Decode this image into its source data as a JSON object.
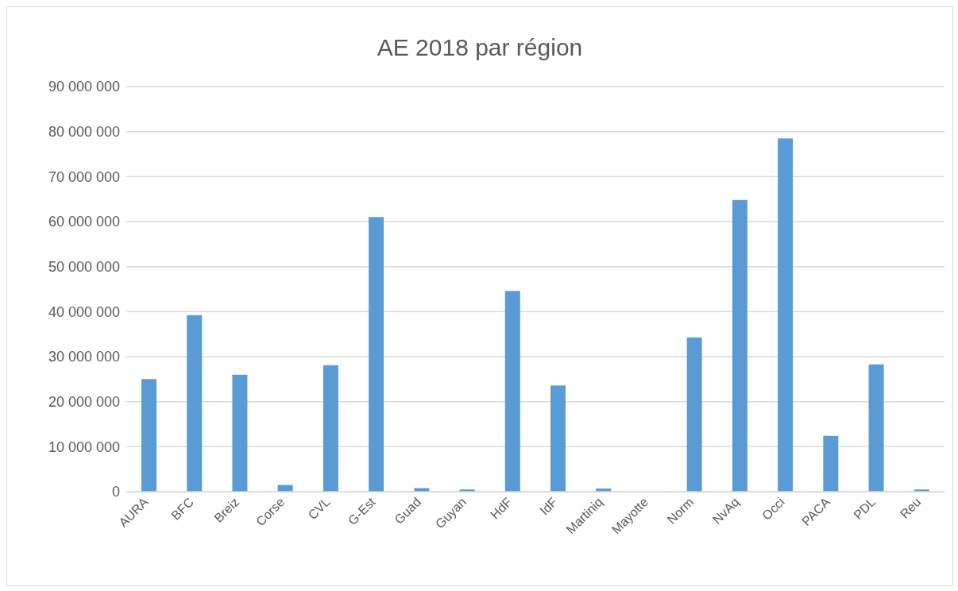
{
  "chart_data": {
    "type": "bar",
    "title": "AE 2018 par région",
    "categories": [
      "AURA",
      "BFC",
      "Breiz",
      "Corse",
      "CVL",
      "G-Est",
      "Guad",
      "Guyan",
      "HdF",
      "IdF",
      "Martiniq",
      "Mayotte",
      "Norm",
      "NvAq",
      "Occi",
      "PACA",
      "PDL",
      "Reu"
    ],
    "values": [
      25000000,
      39200000,
      26000000,
      1500000,
      28100000,
      61000000,
      800000,
      500000,
      44600000,
      23600000,
      700000,
      0,
      34300000,
      64800000,
      78500000,
      12400000,
      28300000,
      500000
    ],
    "color": "#5b9bd5",
    "ylim": [
      0,
      90000000
    ],
    "yticks": [
      {
        "value": 0,
        "label": "0"
      },
      {
        "value": 10000000,
        "label": "10 000 000"
      },
      {
        "value": 20000000,
        "label": "20 000 000"
      },
      {
        "value": 30000000,
        "label": "30 000 000"
      },
      {
        "value": 40000000,
        "label": "40 000 000"
      },
      {
        "value": 50000000,
        "label": "50 000 000"
      },
      {
        "value": 60000000,
        "label": "60 000 000"
      },
      {
        "value": 70000000,
        "label": "70 000 000"
      },
      {
        "value": 80000000,
        "label": "80 000 000"
      },
      {
        "value": 90000000,
        "label": "90 000 000"
      }
    ],
    "grid": "y",
    "legend": false
  }
}
